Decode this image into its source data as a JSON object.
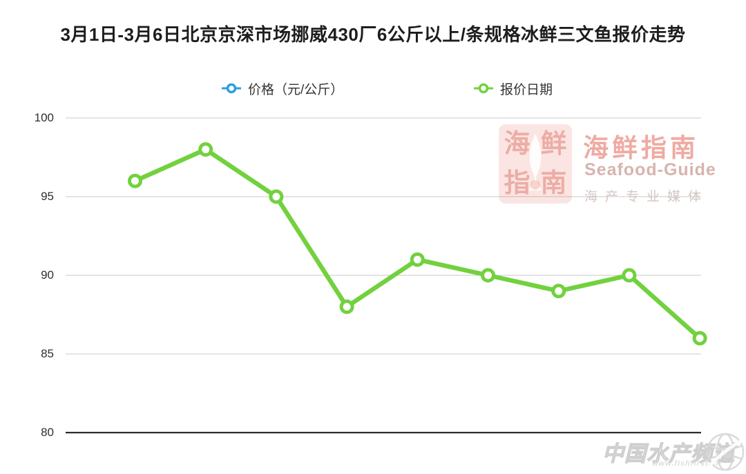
{
  "title": "3月1日-3月6日北京京深市场挪威430厂6公斤以上/条规格冰鲜三文鱼报价走势",
  "legend": [
    {
      "label": "价格（元/公斤）",
      "color": "#2b9fe3"
    },
    {
      "label": "报价日期",
      "color": "#72d13e"
    }
  ],
  "chart_data": {
    "type": "line",
    "title": "3月1日-3月6日北京京深市场挪威430厂6公斤以上/条规格冰鲜三文鱼报价走势",
    "series_name": "价格（元/公斤）",
    "x_axis_name": "报价日期",
    "values": [
      96,
      98,
      95,
      88,
      91,
      90,
      89,
      90,
      86
    ],
    "y_ticks": [
      100,
      95,
      90,
      85,
      80
    ],
    "ylim": [
      80,
      100
    ],
    "x_tick_labels_visible": false,
    "grid": true,
    "legend_position": "top",
    "line_color": "#72d13e",
    "marker": "hollow-circle",
    "grid_color": "#d4d4d4",
    "baseline_color": "#2b2b2b"
  },
  "watermark_center": {
    "logo_chars": [
      "海",
      "鲜",
      "指",
      "南"
    ],
    "title": "海鲜指南",
    "subtitle": "Seafood-Guide",
    "tagline": "海产专业媒体",
    "accent_color": "#db4432"
  },
  "watermark_corner": {
    "text": "中国水产频道",
    "url": "www.fishfirst.cn"
  }
}
